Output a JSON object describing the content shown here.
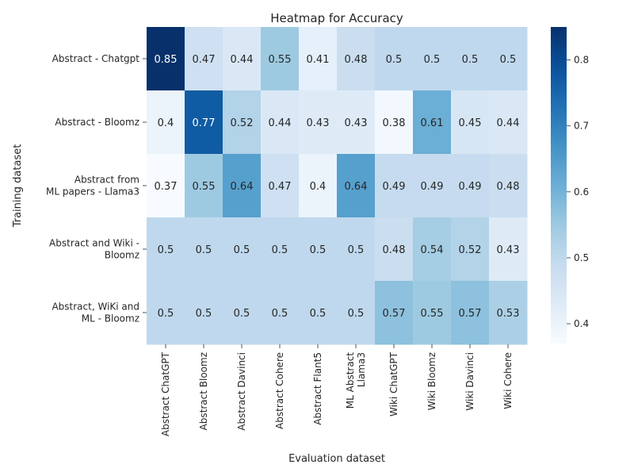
{
  "chart_data": {
    "type": "heatmap",
    "title": "Heatmap for Accuracy",
    "xlabel": "Evaluation dataset",
    "ylabel": "Training dataset",
    "columns": [
      [
        "Abstract ChatGPT"
      ],
      [
        "Abstract Bloomz"
      ],
      [
        "Abstract Davinci"
      ],
      [
        "Abstract Cohere"
      ],
      [
        "Abstract Flant5"
      ],
      [
        "ML Abstract",
        "Llama3"
      ],
      [
        "Wiki ChatGPT"
      ],
      [
        "Wiki Bloomz"
      ],
      [
        "Wiki Davinci"
      ],
      [
        "Wiki Cohere"
      ]
    ],
    "rows": [
      [
        "Abstract - Chatgpt"
      ],
      [
        "Abstract - Bloomz"
      ],
      [
        "Abstract from",
        "ML papers - Llama3"
      ],
      [
        "Abstract and Wiki -",
        "Bloomz"
      ],
      [
        "Abstract, WiKi and",
        "ML - Bloomz"
      ]
    ],
    "values": [
      [
        0.85,
        0.47,
        0.44,
        0.55,
        0.41,
        0.48,
        0.5,
        0.5,
        0.5,
        0.5
      ],
      [
        0.4,
        0.77,
        0.52,
        0.44,
        0.43,
        0.43,
        0.38,
        0.61,
        0.45,
        0.44
      ],
      [
        0.37,
        0.55,
        0.64,
        0.47,
        0.4,
        0.64,
        0.49,
        0.49,
        0.49,
        0.48
      ],
      [
        0.5,
        0.5,
        0.5,
        0.5,
        0.5,
        0.5,
        0.48,
        0.54,
        0.52,
        0.43
      ],
      [
        0.5,
        0.5,
        0.5,
        0.5,
        0.5,
        0.5,
        0.57,
        0.55,
        0.57,
        0.53
      ]
    ],
    "vmin": 0.37,
    "vmax": 0.85,
    "colormap": "Blues",
    "colorbar_ticks": [
      0.4,
      0.5,
      0.6,
      0.7,
      0.8
    ],
    "annotated": true,
    "grid": false
  }
}
